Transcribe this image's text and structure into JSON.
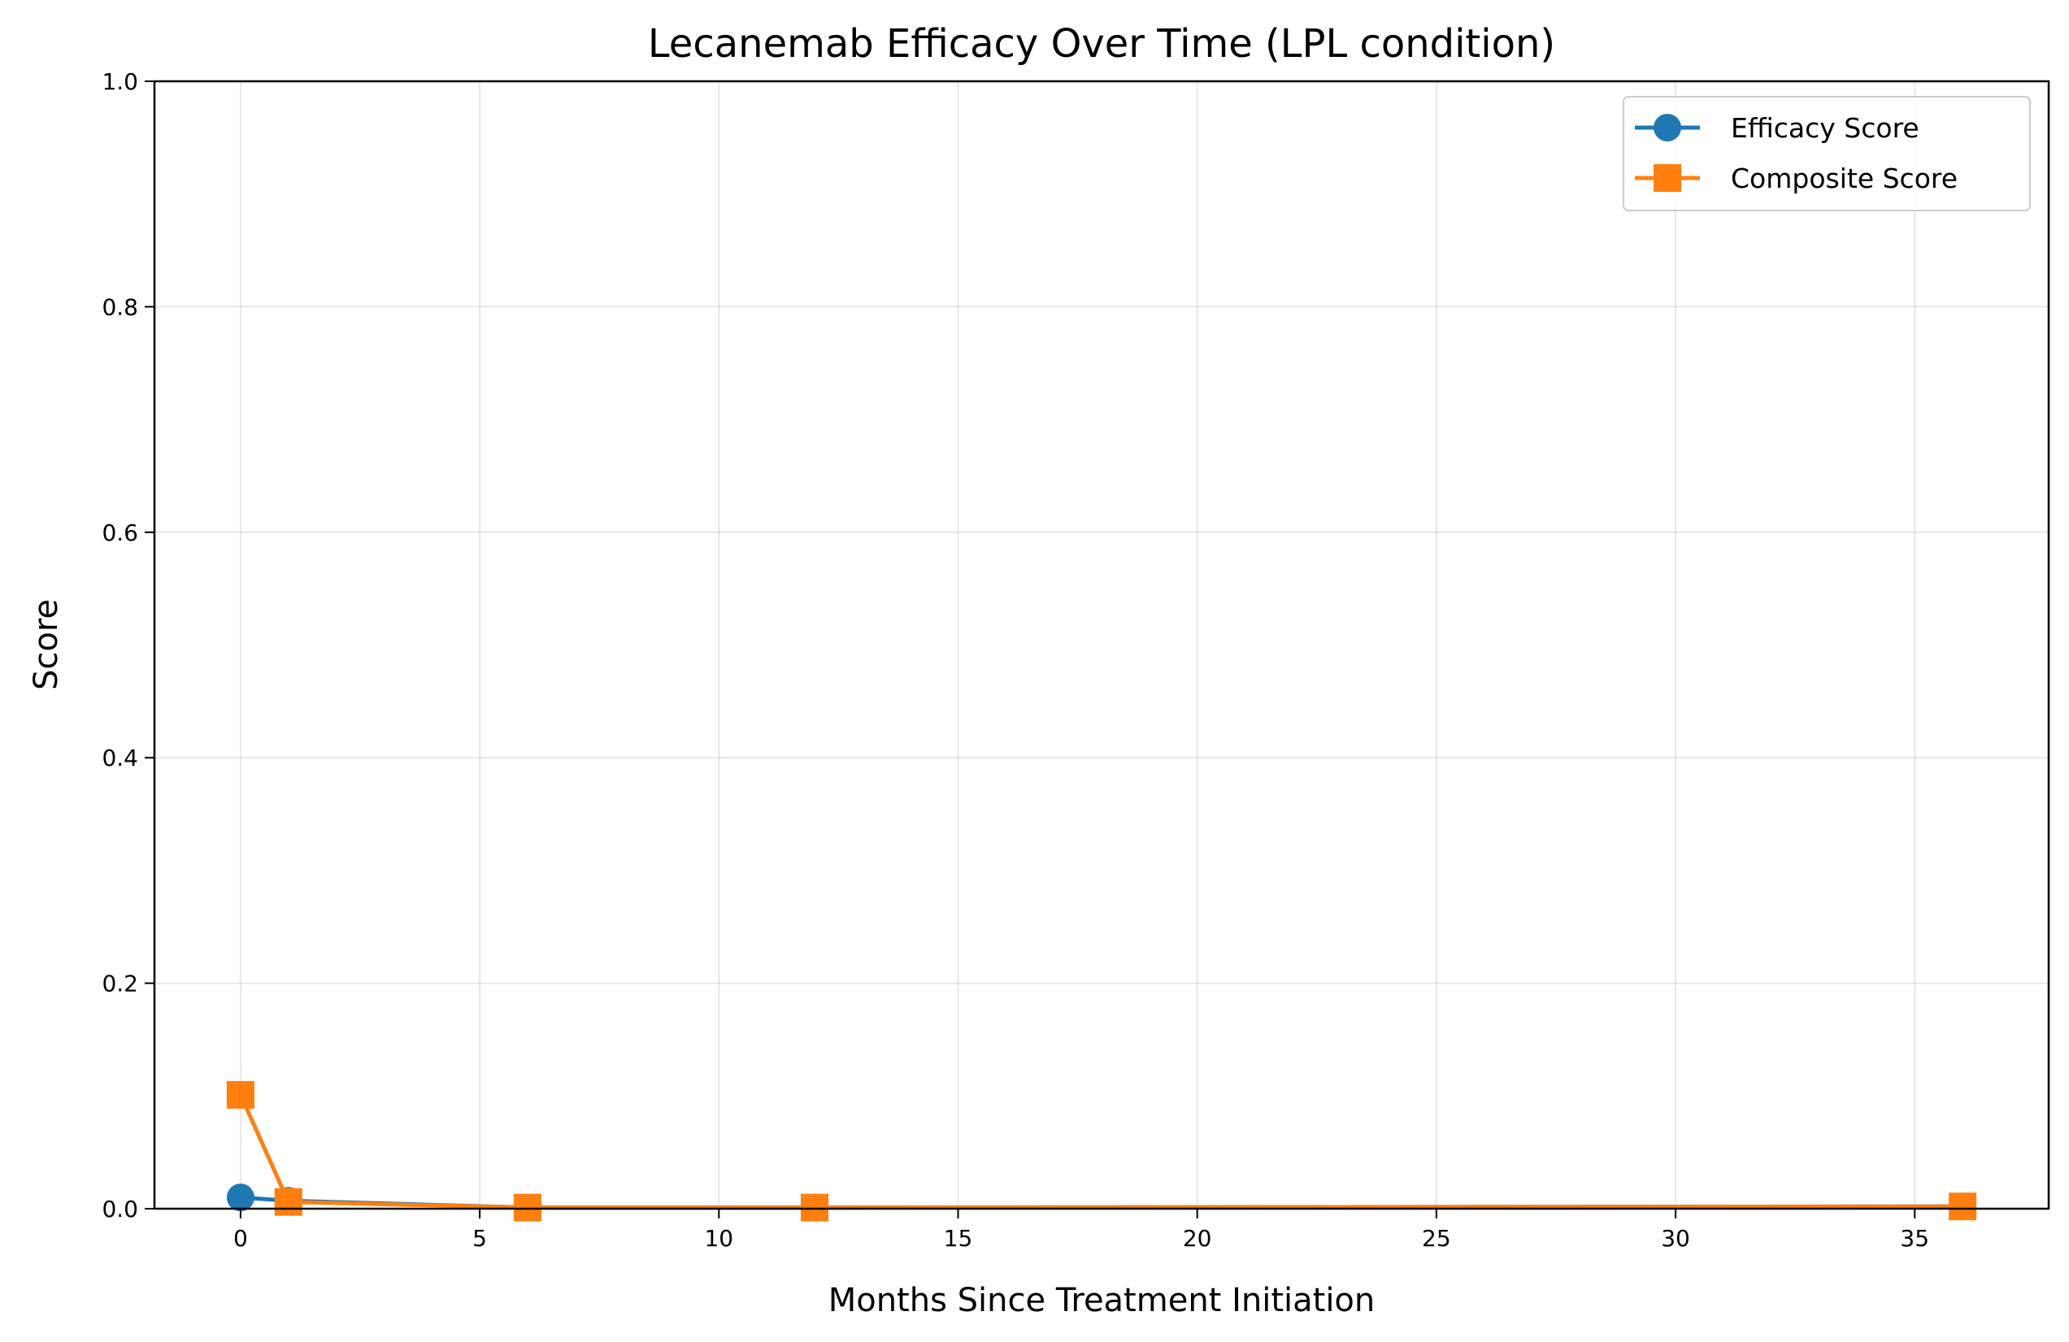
{
  "chart_data": {
    "type": "line",
    "title": "Lecanemab Efficacy Over Time (LPL condition)",
    "xlabel": "Months Since Treatment Initiation",
    "ylabel": "Score",
    "xlim": [
      -1.8,
      37.8
    ],
    "ylim": [
      0,
      1.0
    ],
    "xticks": [
      0,
      5,
      10,
      15,
      20,
      25,
      30,
      35
    ],
    "yticks": [
      0.0,
      0.2,
      0.4,
      0.6,
      0.8,
      1.0
    ],
    "xtick_labels": [
      "0",
      "5",
      "10",
      "15",
      "20",
      "25",
      "30",
      "35"
    ],
    "ytick_labels": [
      "0.0",
      "0.2",
      "0.4",
      "0.6",
      "0.8",
      "1.0"
    ],
    "grid": true,
    "legend_position": "top-right",
    "x": [
      0,
      1,
      6,
      12,
      36
    ],
    "series": [
      {
        "name": "Efficacy Score",
        "marker": "circle",
        "color": "#1f77b4",
        "values": [
          0.01,
          0.007,
          0.001,
          0.001,
          0.002
        ]
      },
      {
        "name": "Composite Score",
        "marker": "square",
        "color": "#ff7f0e",
        "values": [
          0.101,
          0.006,
          0.001,
          0.001,
          0.002
        ]
      }
    ]
  }
}
